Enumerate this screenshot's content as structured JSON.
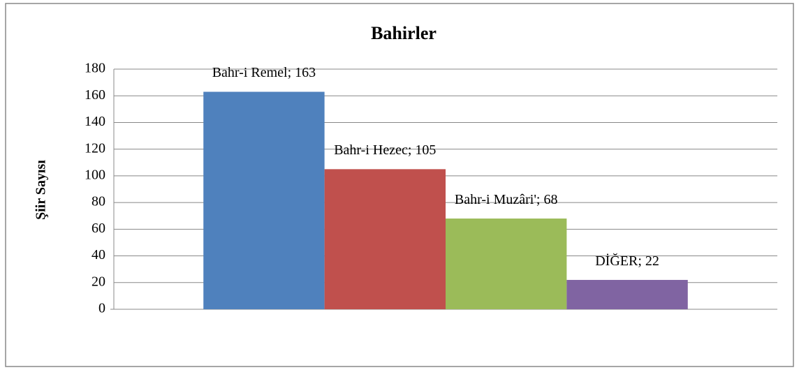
{
  "chart_data": {
    "type": "bar",
    "title": "Bahirler",
    "y_label": "Şiir Sayısı",
    "series": [
      {
        "name": "Bahr-i Remel",
        "color": "#4f81bd",
        "values": [
          163
        ],
        "value_labels": [
          "Bahr-i Remel; 163"
        ]
      },
      {
        "name": "Bahr-i Hezec",
        "color": "#c0504d",
        "values": [
          105
        ],
        "value_labels": [
          "Bahr-i Hezec; 105"
        ]
      },
      {
        "name": "Bahr-i Muzâri'",
        "color": "#9bbb59",
        "values": [
          68
        ],
        "value_labels": [
          "Bahr-i Muzâri'; 68"
        ]
      },
      {
        "name": "DİĞER",
        "color": "#8064a2",
        "values": [
          22
        ],
        "value_labels": [
          "DİĞER; 22"
        ]
      }
    ],
    "ylim": [
      0,
      180
    ],
    "yticks": [
      0,
      20,
      40,
      60,
      80,
      100,
      120,
      140,
      160,
      180
    ],
    "grid": true
  }
}
